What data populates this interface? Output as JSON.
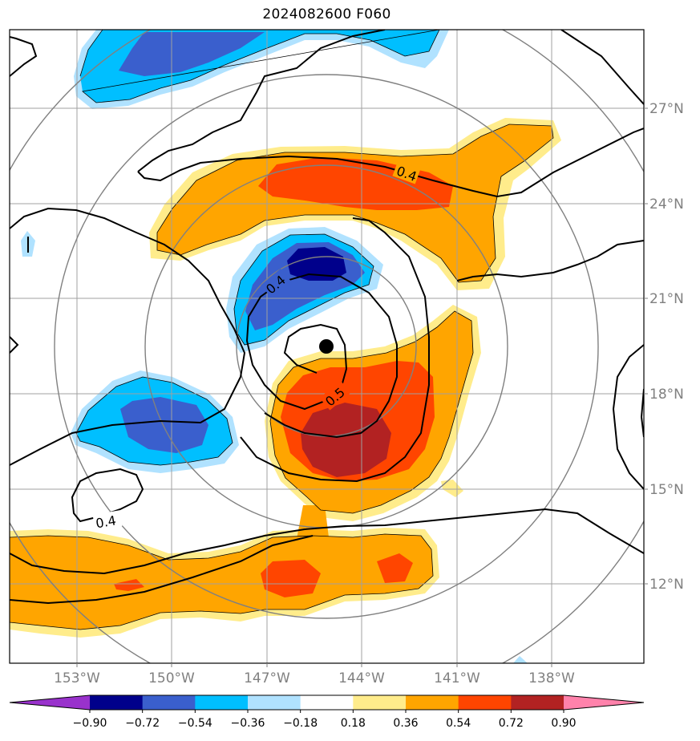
{
  "title": "2024082600 F060",
  "lat_ticks": [
    "27°N",
    "24°N",
    "21°N",
    "18°N",
    "15°N",
    "12°N"
  ],
  "lon_ticks": [
    "153°W",
    "150°W",
    "147°W",
    "144°W",
    "141°W",
    "138°W"
  ],
  "contour_labels": [
    "0.4",
    "0.4",
    "0.5",
    "0.4"
  ],
  "colorbar": {
    "labels": [
      "−0.90",
      "−0.72",
      "−0.54",
      "−0.36",
      "−0.18",
      "0.18",
      "0.36",
      "0.54",
      "0.72",
      "0.90"
    ],
    "colors": [
      "#9932cc",
      "#00008b",
      "#3a5fcd",
      "#00bfff",
      "#b0e2ff",
      "#ffffff",
      "#ffec8b",
      "#ffa500",
      "#ff4500",
      "#b22222",
      "#ff82ab"
    ]
  },
  "colors": {
    "grid": "#a0a0a0",
    "range_rings": "#808080",
    "contour": "#000000",
    "storm_center": "#000000"
  }
}
